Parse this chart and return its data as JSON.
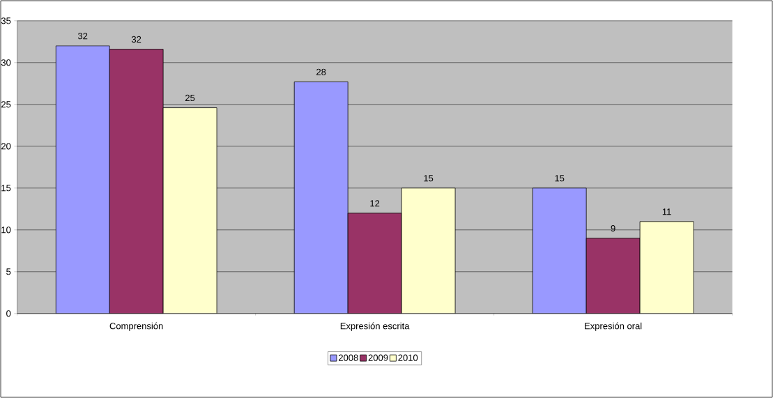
{
  "chart_data": {
    "type": "bar",
    "categories": [
      "Comprensión",
      "Expresión escrita",
      "Expresión oral"
    ],
    "series": [
      {
        "name": "2008",
        "color": "#9999ff",
        "values": [
          32,
          27.7,
          15
        ],
        "value_labels": [
          "32",
          "28",
          "15"
        ]
      },
      {
        "name": "2009",
        "color": "#993366",
        "values": [
          31.6,
          12,
          9
        ],
        "value_labels": [
          "32",
          "12",
          "9"
        ]
      },
      {
        "name": "2010",
        "color": "#ffffcc",
        "values": [
          24.6,
          15,
          11
        ],
        "value_labels": [
          "25",
          "15",
          "11"
        ]
      }
    ],
    "ylim": [
      0,
      35
    ],
    "yticks": [
      0,
      5,
      10,
      15,
      20,
      25,
      30,
      35
    ],
    "grid": "y",
    "legend": "bottom"
  }
}
